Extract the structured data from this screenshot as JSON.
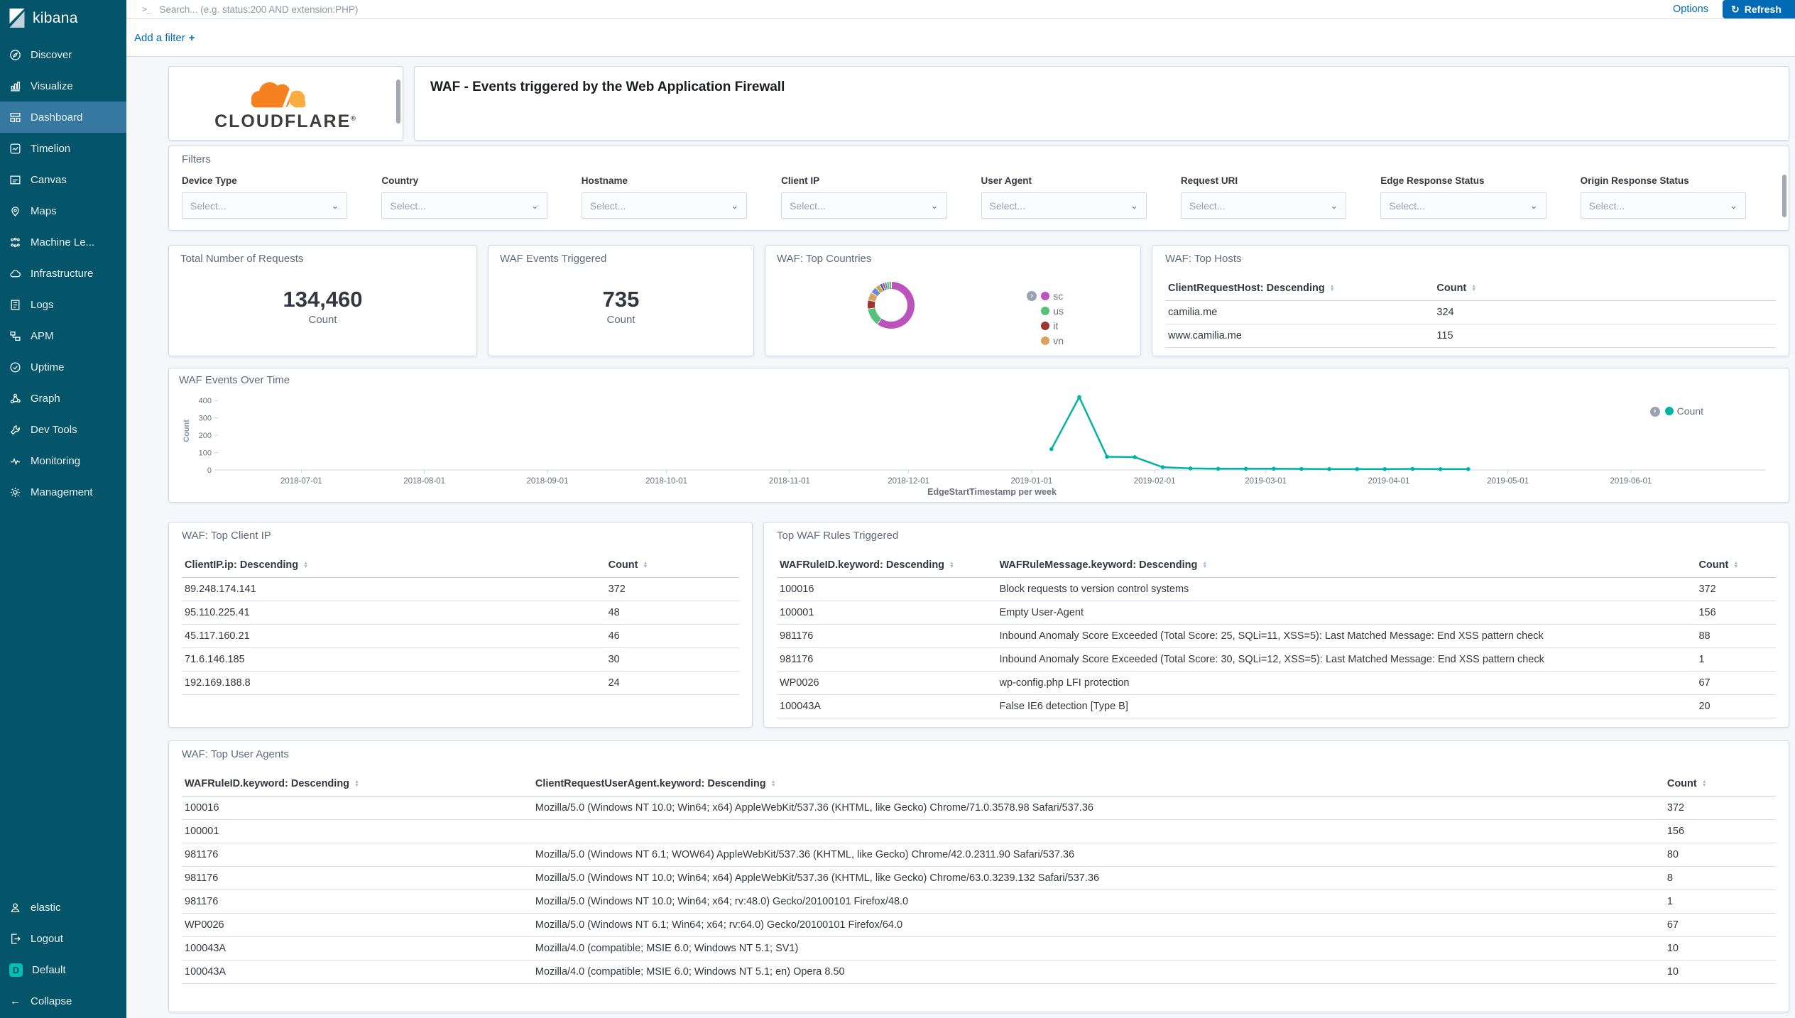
{
  "icons": {
    "search": ">_",
    "refresh": "↻",
    "chevron_down": "⌄",
    "chevron_right": "›",
    "plus": "+",
    "sort_up": "▲",
    "sort_down": "▼",
    "collapse_arrow": "←"
  },
  "sidebar": {
    "logo_text": "kibana",
    "items": [
      "Discover",
      "Visualize",
      "Dashboard",
      "Timelion",
      "Canvas",
      "Maps",
      "Machine Le...",
      "Infrastructure",
      "Logs",
      "APM",
      "Uptime",
      "Graph",
      "Dev Tools",
      "Monitoring",
      "Management"
    ],
    "active_item": "Dashboard",
    "footer": {
      "user": "elastic",
      "logout": "Logout",
      "space_badge": "D",
      "space_name": "Default",
      "collapse": "Collapse"
    }
  },
  "topbar": {
    "search_placeholder": "Search... (e.g. status:200 AND extension:PHP)",
    "options_label": "Options",
    "refresh_label": "Refresh"
  },
  "filter_bar": {
    "add_filter_label": "Add a filter"
  },
  "branding_panel": {
    "brand_text": "CLOUDFLARE",
    "brand_reg": "®"
  },
  "title_panel": {
    "title": "WAF - Events triggered by the Web Application Firewall"
  },
  "filters_panel": {
    "title": "Filters",
    "select_placeholder": "Select...",
    "fields": [
      "Device Type",
      "Country",
      "Hostname",
      "Client IP",
      "User Agent",
      "Request URI",
      "Edge Response Status",
      "Origin Response Status"
    ]
  },
  "metrics": [
    {
      "title": "Total Number of Requests",
      "value": "134,460",
      "label": "Count"
    },
    {
      "title": "WAF Events Triggered",
      "value": "735",
      "label": "Count"
    }
  ],
  "top_countries": {
    "title": "WAF: Top Countries",
    "chart_data": {
      "type": "pie",
      "legend_position": "right",
      "segments": [
        {
          "label": "sc",
          "color": "#bc52bc",
          "pct": 59.7
        },
        {
          "label": "us",
          "color": "#57c17b",
          "pct": 12.5
        },
        {
          "label": "it",
          "color": "#9e3533",
          "pct": 6.1
        },
        {
          "label": "vn",
          "color": "#daa05d",
          "pct": 5.6
        },
        {
          "label": "",
          "color": "#6f87d8",
          "pct": 4.4
        },
        {
          "label": "",
          "color": "#bfaf40",
          "pct": 3.3
        },
        {
          "label": "",
          "color": "#4050bf",
          "pct": 1.9
        },
        {
          "label": "",
          "color": "#bf5040",
          "pct": 1.6
        },
        {
          "label": "",
          "color": "#6f87d8",
          "pct": 1.6
        },
        {
          "label": "",
          "color": "#40bfaf",
          "pct": 1.6
        },
        {
          "label": "",
          "color": "#70bf40",
          "pct": 1.7
        }
      ]
    }
  },
  "top_hosts": {
    "title": "WAF: Top Hosts",
    "columns": [
      "ClientRequestHost: Descending",
      "Count"
    ],
    "rows": [
      [
        "camilia.me",
        "324"
      ],
      [
        "www.camilia.me",
        "115"
      ]
    ]
  },
  "events_over_time": {
    "title": "WAF Events Over Time",
    "legend_label": "Count",
    "chart_data": {
      "type": "line",
      "series_name": "Count",
      "color": "#00b3a4",
      "xlabel": "EdgeStartTimestamp per week",
      "ylabel": "Count",
      "ylim": [
        0,
        450
      ],
      "yticks": [
        0,
        100,
        200,
        300,
        400
      ],
      "xticks": [
        "2018-07-01",
        "2018-08-01",
        "2018-09-01",
        "2018-10-01",
        "2018-11-01",
        "2018-12-01",
        "2019-01-01",
        "2019-02-01",
        "2019-03-01",
        "2019-04-01",
        "2019-05-01",
        "2019-06-01"
      ],
      "xrange": [
        "2018-06-10",
        "2019-07-05"
      ],
      "points": [
        {
          "x": "2019-01-06",
          "y": 120
        },
        {
          "x": "2019-01-13",
          "y": 420
        },
        {
          "x": "2019-01-20",
          "y": 76
        },
        {
          "x": "2019-01-27",
          "y": 74
        },
        {
          "x": "2019-02-03",
          "y": 16
        },
        {
          "x": "2019-02-10",
          "y": 9
        },
        {
          "x": "2019-02-17",
          "y": 7
        },
        {
          "x": "2019-02-24",
          "y": 7
        },
        {
          "x": "2019-03-03",
          "y": 7
        },
        {
          "x": "2019-03-10",
          "y": 6
        },
        {
          "x": "2019-03-17",
          "y": 5
        },
        {
          "x": "2019-03-24",
          "y": 5
        },
        {
          "x": "2019-03-31",
          "y": 5
        },
        {
          "x": "2019-04-07",
          "y": 6
        },
        {
          "x": "2019-04-14",
          "y": 5
        },
        {
          "x": "2019-04-21",
          "y": 5
        }
      ]
    }
  },
  "top_client_ip": {
    "title": "WAF: Top Client IP",
    "columns": [
      "ClientIP.ip: Descending",
      "Count"
    ],
    "rows": [
      [
        "89.248.174.141",
        "372"
      ],
      [
        "95.110.225.41",
        "48"
      ],
      [
        "45.117.160.21",
        "46"
      ],
      [
        "71.6.146.185",
        "30"
      ],
      [
        "192.169.188.8",
        "24"
      ]
    ]
  },
  "top_waf_rules": {
    "title": "Top WAF Rules Triggered",
    "columns": [
      "WAFRuleID.keyword: Descending",
      "WAFRuleMessage.keyword: Descending",
      "Count"
    ],
    "rows": [
      [
        "100016",
        "Block requests to version control systems",
        "372"
      ],
      [
        "100001",
        "Empty User-Agent",
        "156"
      ],
      [
        "981176",
        "Inbound Anomaly Score Exceeded (Total Score: 25, SQLi=11, XSS=5): Last Matched Message: End XSS pattern check",
        "88"
      ],
      [
        "981176",
        "Inbound Anomaly Score Exceeded (Total Score: 30, SQLi=12, XSS=5): Last Matched Message: End XSS pattern check",
        "1"
      ],
      [
        "WP0026",
        "wp-config.php LFI protection",
        "67"
      ],
      [
        "100043A",
        "False IE6 detection [Type B]",
        "20"
      ]
    ]
  },
  "top_user_agents": {
    "title": "WAF: Top User Agents",
    "columns": [
      "WAFRuleID.keyword: Descending",
      "ClientRequestUserAgent.keyword: Descending",
      "Count"
    ],
    "rows": [
      [
        "100016",
        "Mozilla/5.0 (Windows NT 10.0; Win64; x64) AppleWebKit/537.36 (KHTML, like Gecko) Chrome/71.0.3578.98 Safari/537.36",
        "372"
      ],
      [
        "100001",
        "",
        "156"
      ],
      [
        "981176",
        "Mozilla/5.0 (Windows NT 6.1; WOW64) AppleWebKit/537.36 (KHTML, like Gecko) Chrome/42.0.2311.90 Safari/537.36",
        "80"
      ],
      [
        "981176",
        "Mozilla/5.0 (Windows NT 10.0; Win64; x64) AppleWebKit/537.36 (KHTML, like Gecko) Chrome/63.0.3239.132 Safari/537.36",
        "8"
      ],
      [
        "981176",
        "Mozilla/5.0 (Windows NT 10.0; Win64; x64; rv:48.0) Gecko/20100101 Firefox/48.0",
        "1"
      ],
      [
        "WP0026",
        "Mozilla/5.0 (Windows NT 6.1; Win64; x64; rv:64.0) Gecko/20100101 Firefox/64.0",
        "67"
      ],
      [
        "100043A",
        "Mozilla/4.0 (compatible; MSIE 6.0; Windows NT 5.1; SV1)",
        "10"
      ],
      [
        "100043A",
        "Mozilla/4.0 (compatible; MSIE 6.0; Windows NT 5.1; en) Opera 8.50",
        "10"
      ]
    ]
  },
  "colors": {
    "accent_blue": "#006bb4",
    "line_teal": "#00b3a4",
    "sidebar_bg": "#045569",
    "brand_orange": "#f6821f"
  }
}
